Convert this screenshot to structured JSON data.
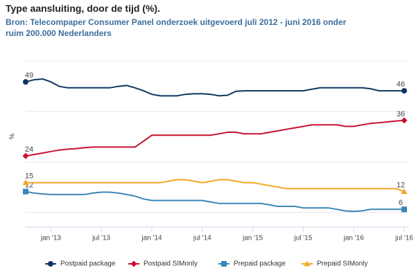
{
  "chart_data": {
    "type": "line",
    "title": "Type aansluiting, door de tijd (%).",
    "subtitle": "Bron: Telecompaper Consumer Panel onderzoek uitgevoerd juli 2012 - juni 2016 onder ruim 200.000 Nederlanders",
    "y_label": "%",
    "categories": [
      null,
      null,
      null,
      "jan '13",
      null,
      null,
      null,
      null,
      null,
      "jul '13",
      null,
      null,
      null,
      null,
      null,
      "jan '14",
      null,
      null,
      null,
      null,
      null,
      "jul '14",
      null,
      null,
      null,
      null,
      null,
      "jan '15",
      null,
      null,
      null,
      null,
      null,
      "jul '15",
      null,
      null,
      null,
      null,
      null,
      "jan '16",
      null,
      null,
      null,
      null,
      null,
      "jul '16"
    ],
    "ylim": [
      0,
      57
    ],
    "yticks": [
      5,
      22,
      39,
      56
    ],
    "grid": true,
    "legend": "bottom",
    "series": [
      {
        "name": "Postpaid package",
        "color": "#0d3561",
        "marker": "circle",
        "values": [
          49,
          49.7,
          50,
          49,
          47.5,
          47,
          47,
          47,
          47,
          47,
          47,
          47.5,
          47.8,
          47,
          46,
          44.8,
          44.3,
          44.3,
          44.3,
          44.8,
          45,
          45,
          44.8,
          44.3,
          44.5,
          45.8,
          46,
          46,
          46,
          46,
          46,
          46,
          46,
          46,
          46.5,
          47,
          47,
          47,
          47,
          47,
          47,
          46.7,
          46,
          46,
          46,
          46
        ]
      },
      {
        "name": "Postpaid SIMonly",
        "color": "#c8102e",
        "marker": "diamond",
        "values": [
          24,
          24.5,
          25,
          25.5,
          26,
          26.3,
          26.5,
          26.8,
          27,
          27,
          27,
          27,
          27,
          27,
          29,
          31,
          31,
          31,
          31,
          31,
          31,
          31,
          31,
          31.5,
          32,
          32,
          31.5,
          31.5,
          31.5,
          32,
          32.5,
          33,
          33.5,
          34,
          34.5,
          34.5,
          34.5,
          34.5,
          34,
          34,
          34.5,
          35,
          35.2,
          35.5,
          35.8,
          36
        ]
      },
      {
        "name": "Prepaid package",
        "color": "#3a86b8",
        "marker": "square",
        "values": [
          12,
          11.5,
          11.2,
          11,
          11,
          11,
          11,
          11,
          11.5,
          11.8,
          11.8,
          11.5,
          11,
          10.5,
          9.5,
          9,
          9,
          9,
          9,
          9,
          9,
          9,
          8.5,
          8,
          8,
          8,
          8,
          8,
          8,
          7.5,
          7,
          7,
          7,
          6.5,
          6.5,
          6.5,
          6.5,
          6,
          5.5,
          5.3,
          5.5,
          6,
          6,
          6,
          6,
          6
        ]
      },
      {
        "name": "Prepaid SIMonly",
        "color": "#f5a623",
        "marker": "triangle",
        "values": [
          15,
          15,
          15,
          15,
          15,
          15,
          15,
          15,
          15,
          15,
          15,
          15,
          15,
          15,
          15,
          15,
          15,
          15.5,
          16,
          16,
          15.5,
          15,
          15.5,
          16,
          16,
          15.5,
          15,
          15,
          14.5,
          14,
          13.5,
          13,
          13,
          13,
          13,
          13,
          13,
          13,
          13,
          13,
          13,
          13,
          13,
          13,
          13,
          12
        ]
      }
    ]
  }
}
